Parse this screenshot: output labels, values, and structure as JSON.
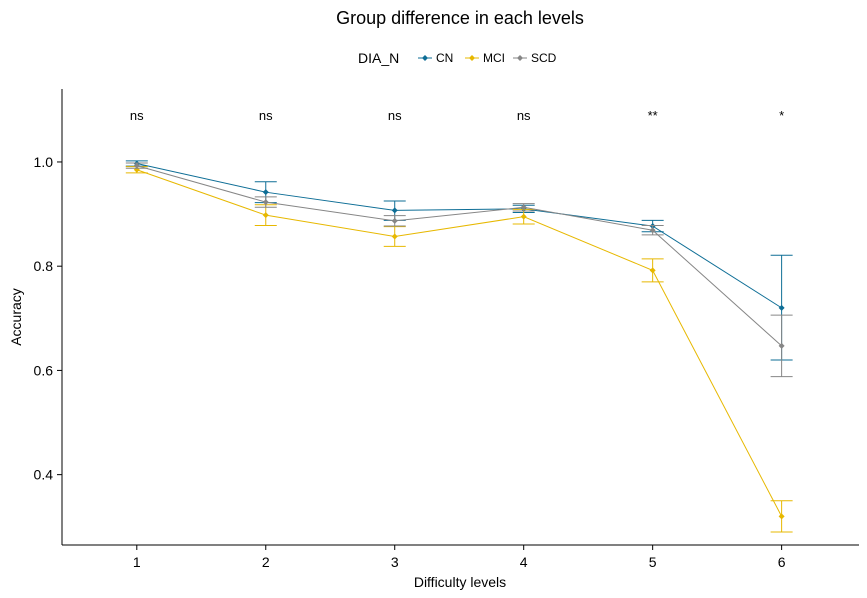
{
  "chart_data": {
    "type": "line",
    "title": "Group difference in each levels",
    "xlabel": "Difficulty levels",
    "ylabel": "Accuracy",
    "x": [
      1,
      2,
      3,
      4,
      5,
      6
    ],
    "xlim": [
      0.42,
      6.6
    ],
    "ylim": [
      0.265,
      1.14
    ],
    "yticks": [
      0.4,
      0.6,
      0.8,
      1.0
    ],
    "yticklabels": [
      "0.4",
      "0.6",
      "0.8",
      "1.0"
    ],
    "xticklabels": [
      "1",
      "2",
      "3",
      "4",
      "5",
      "6"
    ],
    "grid": false,
    "legend": {
      "title": "DIA_N",
      "position": "top",
      "entries": [
        "CN",
        "MCI",
        "SCD"
      ]
    },
    "series": [
      {
        "name": "CN",
        "color": "#0E6E96",
        "values": [
          0.997,
          0.942,
          0.907,
          0.91,
          0.877,
          0.72
        ],
        "err_low": [
          0.992,
          0.922,
          0.888,
          0.903,
          0.866,
          0.62
        ],
        "err_high": [
          1.002,
          0.962,
          0.925,
          0.917,
          0.888,
          0.821
        ]
      },
      {
        "name": "MCI",
        "color": "#E7B800",
        "values": [
          0.985,
          0.898,
          0.857,
          0.895,
          0.792,
          0.32
        ],
        "err_low": [
          0.979,
          0.878,
          0.838,
          0.881,
          0.77,
          0.29
        ],
        "err_high": [
          0.991,
          0.918,
          0.876,
          0.909,
          0.814,
          0.35
        ]
      },
      {
        "name": "SCD",
        "color": "#868686",
        "values": [
          0.993,
          0.923,
          0.887,
          0.913,
          0.869,
          0.647
        ],
        "err_low": [
          0.988,
          0.913,
          0.877,
          0.906,
          0.86,
          0.588
        ],
        "err_high": [
          0.998,
          0.933,
          0.897,
          0.92,
          0.878,
          0.706
        ]
      }
    ],
    "annotations": [
      {
        "x": 1,
        "text": "ns"
      },
      {
        "x": 2,
        "text": "ns"
      },
      {
        "x": 3,
        "text": "ns"
      },
      {
        "x": 4,
        "text": "ns"
      },
      {
        "x": 5,
        "text": "**"
      },
      {
        "x": 6,
        "text": "*"
      }
    ],
    "annotation_y": 1.09
  }
}
